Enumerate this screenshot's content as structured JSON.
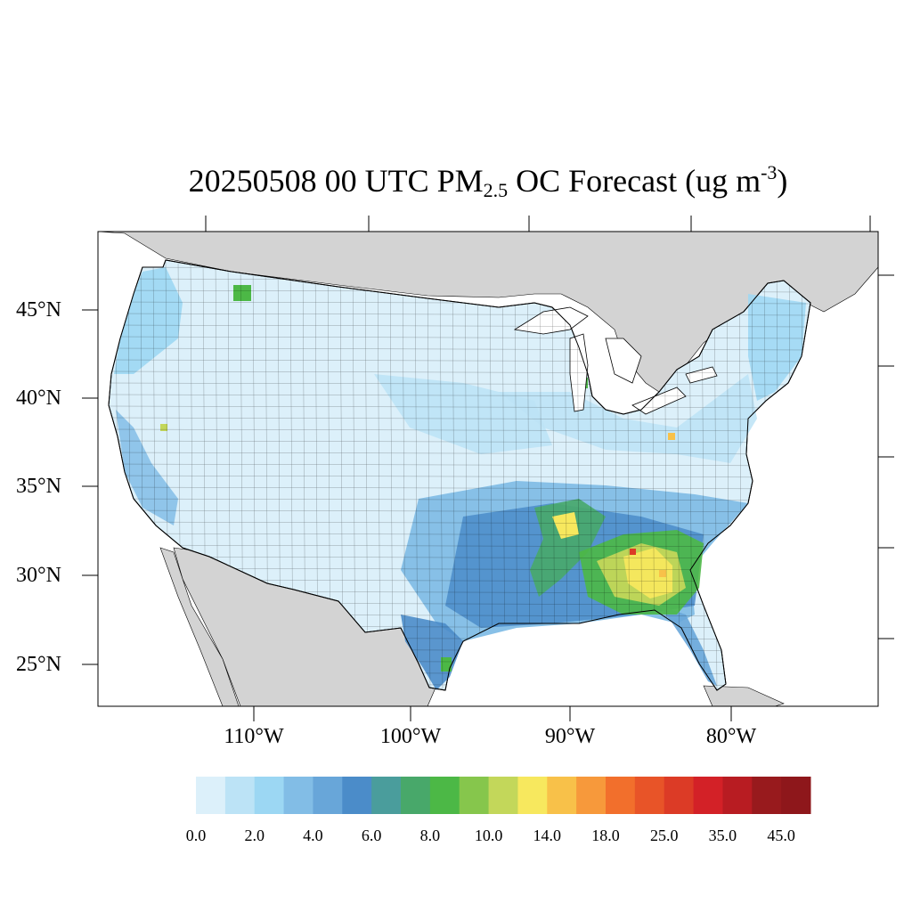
{
  "title": {
    "prefix": "20250508 00 UTC PM",
    "subscript": "2.5",
    "middle": " OC Forecast (ug m",
    "superscript": "-3",
    "suffix": ")"
  },
  "lat_labels": [
    "45°N",
    "40°N",
    "35°N",
    "30°N",
    "25°N"
  ],
  "lon_labels": [
    "110°W",
    "100°W",
    "90°W",
    "80°W"
  ],
  "colorbar": {
    "colors": [
      "#dcf0fa",
      "#bce3f6",
      "#9cd7f3",
      "#82bde6",
      "#68a6d9",
      "#4b8cc9",
      "#4a9d9c",
      "#48a86a",
      "#4cb846",
      "#86c64c",
      "#c3d75a",
      "#f7e85e",
      "#f8c149",
      "#f7993b",
      "#f26f2c",
      "#e85428",
      "#dc3b26",
      "#d32127",
      "#b81c22",
      "#981a1d",
      "#8e171b"
    ],
    "tick_labels": [
      "0.0",
      "2.0",
      "4.0",
      "6.0",
      "8.0",
      "10.0",
      "14.0",
      "18.0",
      "25.0",
      "35.0",
      "45.0"
    ]
  },
  "map": {
    "land_outside_color": "#d3d3d3",
    "water_color": "#ffffff",
    "border_color": "#000000"
  }
}
